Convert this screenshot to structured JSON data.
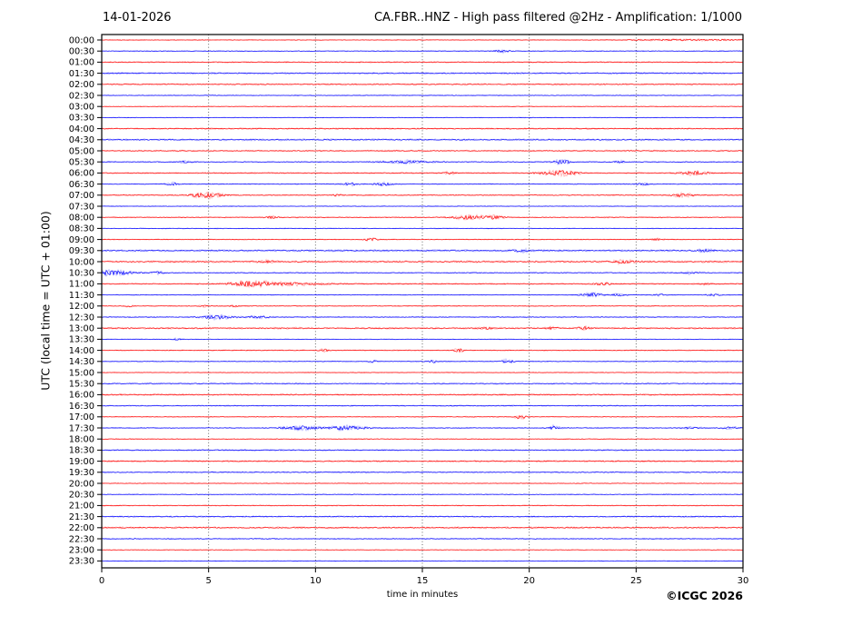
{
  "header": {
    "date": "14-01-2026",
    "title": "CA.FBR..HNZ - High pass filtered @2Hz - Amplification: 1/1000"
  },
  "footer": {
    "xlabel": "time in minutes",
    "copyright": "©ICGC 2026"
  },
  "chart_data": {
    "type": "line",
    "variant": "helicorder-daily-seismogram",
    "date": "14-01-2026",
    "title": "CA.FBR..HNZ - High pass filtered @2Hz - Amplification: 1/1000",
    "xlabel": "time in minutes",
    "ylabel": "UTC (local time = UTC + 01:00)",
    "xlim": [
      0,
      30
    ],
    "x_ticks": [
      0,
      5,
      10,
      15,
      20,
      25,
      30
    ],
    "grid": "vertical dotted lines every 5 minutes",
    "row_interval_minutes": 30,
    "trace_colors": {
      "red": "#ff0000",
      "blue": "#0000ff"
    },
    "frame_color": "#000000",
    "grid_color": "#555555",
    "events_units": "[start_minute, duration_minutes, amplitude_px]",
    "rows": [
      {
        "label": "00:00",
        "color": "red",
        "noise": 0.5,
        "events": [
          [
            27.5,
            4.0,
            0.8
          ]
        ]
      },
      {
        "label": "00:30",
        "color": "blue",
        "noise": 0.6,
        "events": [
          [
            18.7,
            0.5,
            1.6
          ]
        ]
      },
      {
        "label": "01:00",
        "color": "red",
        "noise": 0.9,
        "events": []
      },
      {
        "label": "01:30",
        "color": "blue",
        "noise": 1.1,
        "events": []
      },
      {
        "label": "02:00",
        "color": "red",
        "noise": 1.0,
        "events": []
      },
      {
        "label": "02:30",
        "color": "blue",
        "noise": 0.6,
        "events": []
      },
      {
        "label": "03:00",
        "color": "red",
        "noise": 0.5,
        "events": []
      },
      {
        "label": "03:30",
        "color": "blue",
        "noise": 0.5,
        "events": []
      },
      {
        "label": "04:00",
        "color": "red",
        "noise": 1.0,
        "events": []
      },
      {
        "label": "04:30",
        "color": "blue",
        "noise": 1.1,
        "events": []
      },
      {
        "label": "05:00",
        "color": "red",
        "noise": 0.9,
        "events": []
      },
      {
        "label": "05:30",
        "color": "blue",
        "noise": 0.8,
        "events": [
          [
            3.9,
            0.4,
            1.4
          ],
          [
            14.2,
            1.5,
            1.6
          ],
          [
            21.5,
            0.5,
            3.2
          ],
          [
            24.3,
            0.4,
            1.4
          ]
        ]
      },
      {
        "label": "06:00",
        "color": "red",
        "noise": 0.9,
        "events": [
          [
            16.3,
            0.5,
            1.2
          ],
          [
            21.4,
            1.2,
            3.0
          ],
          [
            27.7,
            0.9,
            2.4
          ]
        ]
      },
      {
        "label": "06:30",
        "color": "blue",
        "noise": 0.7,
        "events": [
          [
            3.3,
            0.4,
            1.8
          ],
          [
            11.6,
            0.5,
            2.2
          ],
          [
            13.2,
            0.6,
            1.8
          ],
          [
            25.3,
            0.5,
            1.2
          ]
        ]
      },
      {
        "label": "07:00",
        "color": "red",
        "noise": 0.8,
        "events": [
          [
            4.9,
            1.1,
            3.2
          ],
          [
            11.0,
            0.3,
            1.5
          ],
          [
            27.2,
            0.7,
            2.2
          ]
        ]
      },
      {
        "label": "07:30",
        "color": "blue",
        "noise": 0.5,
        "events": []
      },
      {
        "label": "08:00",
        "color": "red",
        "noise": 0.7,
        "events": [
          [
            8.0,
            0.4,
            1.4
          ],
          [
            17.2,
            1.3,
            2.2
          ],
          [
            18.4,
            0.6,
            1.8
          ]
        ]
      },
      {
        "label": "08:30",
        "color": "blue",
        "noise": 0.5,
        "events": []
      },
      {
        "label": "09:00",
        "color": "red",
        "noise": 0.6,
        "events": [
          [
            12.6,
            0.4,
            2.4
          ],
          [
            26.0,
            0.4,
            1.2
          ]
        ]
      },
      {
        "label": "09:30",
        "color": "blue",
        "noise": 1.2,
        "events": [
          [
            19.6,
            0.5,
            1.6
          ],
          [
            28.2,
            0.6,
            1.4
          ]
        ]
      },
      {
        "label": "10:00",
        "color": "red",
        "noise": 1.2,
        "events": [
          [
            7.8,
            0.6,
            1.2
          ],
          [
            24.4,
            0.8,
            1.8
          ]
        ]
      },
      {
        "label": "10:30",
        "color": "blue",
        "noise": 0.8,
        "events": [
          [
            0.5,
            1.3,
            3.2
          ],
          [
            2.6,
            0.5,
            1.4
          ],
          [
            27.6,
            0.5,
            1.4
          ]
        ]
      },
      {
        "label": "11:00",
        "color": "red",
        "noise": 0.9,
        "events": [
          [
            7.0,
            1.3,
            3.2
          ],
          [
            9.0,
            2.2,
            1.6
          ],
          [
            23.4,
            0.6,
            1.6
          ],
          [
            28.2,
            0.4,
            1.0
          ]
        ]
      },
      {
        "label": "11:30",
        "color": "blue",
        "noise": 0.6,
        "events": [
          [
            22.9,
            0.7,
            2.4
          ],
          [
            24.2,
            0.5,
            1.4
          ],
          [
            26.1,
            0.4,
            1.1
          ],
          [
            28.6,
            0.5,
            1.2
          ]
        ]
      },
      {
        "label": "12:00",
        "color": "red",
        "noise": 0.6,
        "events": [
          [
            1.3,
            0.3,
            1.0
          ],
          [
            4.8,
            0.3,
            1.1
          ],
          [
            6.2,
            0.3,
            1.0
          ]
        ]
      },
      {
        "label": "12:30",
        "color": "blue",
        "noise": 0.8,
        "events": [
          [
            5.4,
            1.0,
            2.2
          ],
          [
            7.3,
            0.7,
            1.3
          ]
        ]
      },
      {
        "label": "13:00",
        "color": "red",
        "noise": 1.1,
        "events": [
          [
            18.0,
            0.4,
            1.3
          ],
          [
            21.0,
            0.4,
            1.3
          ],
          [
            22.6,
            0.4,
            1.6
          ]
        ]
      },
      {
        "label": "13:30",
        "color": "blue",
        "noise": 0.5,
        "events": [
          [
            3.5,
            0.3,
            1.0
          ]
        ]
      },
      {
        "label": "14:00",
        "color": "red",
        "noise": 0.7,
        "events": [
          [
            10.4,
            0.3,
            1.8
          ],
          [
            16.7,
            0.3,
            2.2
          ]
        ]
      },
      {
        "label": "14:30",
        "color": "blue",
        "noise": 0.6,
        "events": [
          [
            12.7,
            0.3,
            1.3
          ],
          [
            15.5,
            0.3,
            1.8
          ],
          [
            19.0,
            0.4,
            2.4
          ]
        ]
      },
      {
        "label": "15:00",
        "color": "red",
        "noise": 0.5,
        "events": []
      },
      {
        "label": "15:30",
        "color": "blue",
        "noise": 0.9,
        "events": []
      },
      {
        "label": "16:00",
        "color": "red",
        "noise": 1.1,
        "events": []
      },
      {
        "label": "16:30",
        "color": "blue",
        "noise": 0.8,
        "events": []
      },
      {
        "label": "17:00",
        "color": "red",
        "noise": 0.6,
        "events": [
          [
            19.6,
            0.4,
            2.4
          ]
        ]
      },
      {
        "label": "17:30",
        "color": "blue",
        "noise": 0.7,
        "events": [
          [
            9.3,
            1.2,
            2.6
          ],
          [
            11.5,
            1.2,
            2.6
          ],
          [
            21.2,
            0.3,
            3.0
          ],
          [
            27.6,
            0.6,
            1.3
          ],
          [
            29.4,
            0.5,
            1.4
          ]
        ]
      },
      {
        "label": "18:00",
        "color": "red",
        "noise": 0.6,
        "events": []
      },
      {
        "label": "18:30",
        "color": "blue",
        "noise": 1.0,
        "events": []
      },
      {
        "label": "19:00",
        "color": "red",
        "noise": 1.1,
        "events": []
      },
      {
        "label": "19:30",
        "color": "blue",
        "noise": 0.9,
        "events": []
      },
      {
        "label": "20:00",
        "color": "red",
        "noise": 0.6,
        "events": []
      },
      {
        "label": "20:30",
        "color": "blue",
        "noise": 0.6,
        "events": []
      },
      {
        "label": "21:00",
        "color": "red",
        "noise": 0.7,
        "events": []
      },
      {
        "label": "21:30",
        "color": "blue",
        "noise": 1.0,
        "events": []
      },
      {
        "label": "22:00",
        "color": "red",
        "noise": 1.1,
        "events": []
      },
      {
        "label": "22:30",
        "color": "blue",
        "noise": 0.8,
        "events": []
      },
      {
        "label": "23:00",
        "color": "red",
        "noise": 0.5,
        "events": []
      },
      {
        "label": "23:30",
        "color": "blue",
        "noise": 0.5,
        "events": []
      }
    ]
  }
}
